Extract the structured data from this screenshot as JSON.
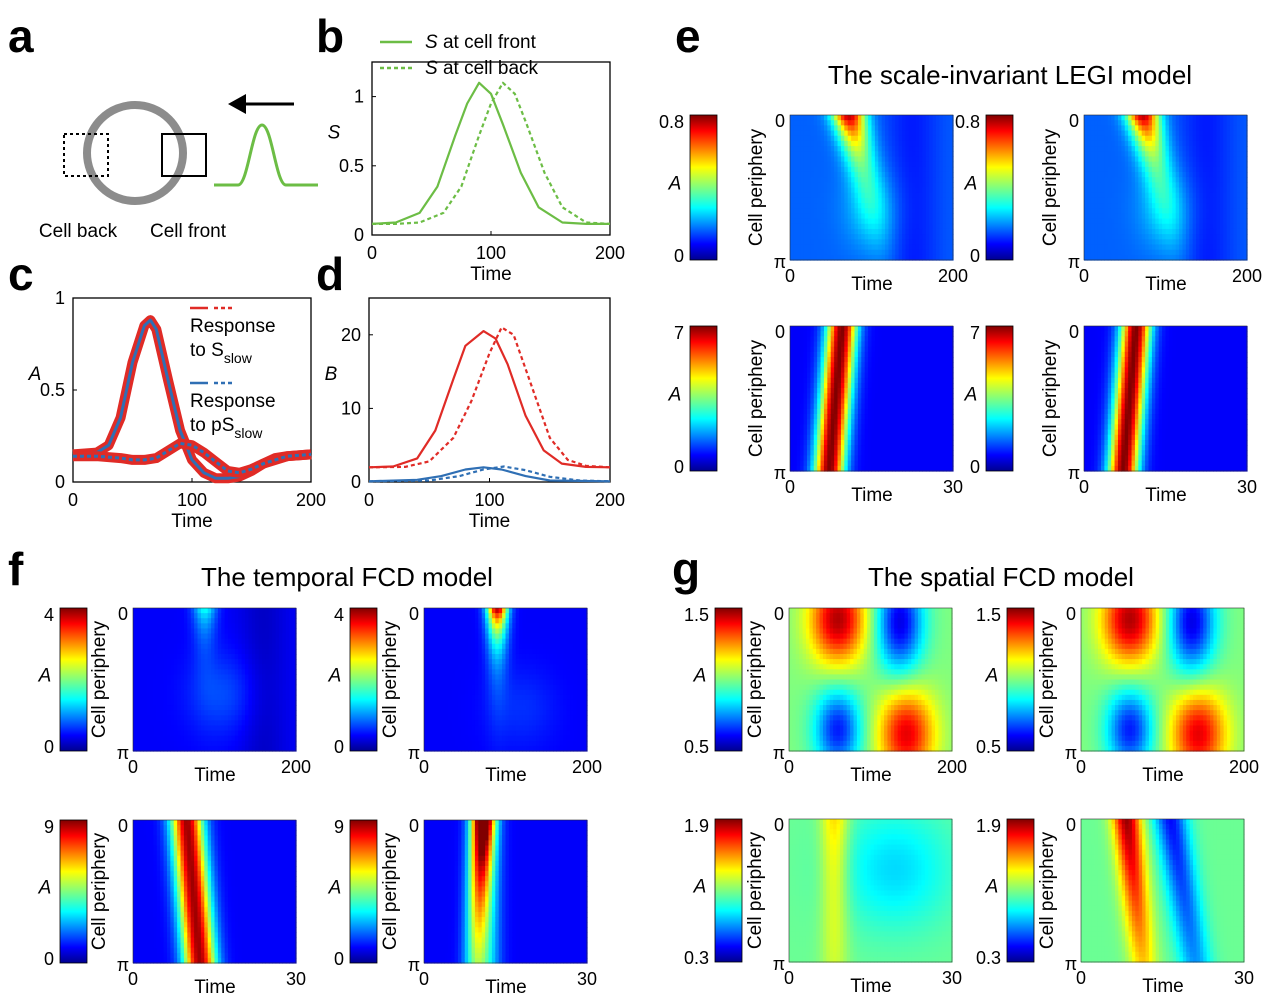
{
  "panels": {
    "a": {
      "letter": "a",
      "cell_back": "Cell back",
      "cell_front": "Cell front",
      "colors": {
        "cell": "#8c8c8c",
        "signal": "#6cbd45"
      }
    },
    "b": {
      "letter": "b"
    },
    "c": {
      "letter": "c"
    },
    "d": {
      "letter": "d"
    },
    "e": {
      "letter": "e",
      "title": "The scale-invariant LEGI model"
    },
    "f": {
      "letter": "f",
      "title": "The temporal FCD model"
    },
    "g": {
      "letter": "g",
      "title": "The spatial FCD model"
    }
  },
  "chart_data": [
    {
      "id": "b",
      "type": "line",
      "xlabel": "Time",
      "ylabel": "S",
      "xlim": [
        0,
        200
      ],
      "ylim": [
        0,
        1.25
      ],
      "xticks": [
        "0",
        "100",
        "200"
      ],
      "yticks": [
        "0",
        "0.5",
        "1"
      ],
      "legend_position": "top-left",
      "series": [
        {
          "name_var": "S",
          "name_rest": " at cell front",
          "style": "solid",
          "color": "#6cbd45",
          "x": [
            0,
            20,
            40,
            55,
            70,
            80,
            90,
            100,
            110,
            125,
            140,
            160,
            180,
            200
          ],
          "y": [
            0.08,
            0.09,
            0.16,
            0.35,
            0.72,
            0.95,
            1.1,
            1.02,
            0.8,
            0.45,
            0.2,
            0.09,
            0.08,
            0.08
          ]
        },
        {
          "name_var": "S",
          "name_rest": " at cell back",
          "style": "dotted",
          "color": "#6cbd45",
          "x": [
            0,
            20,
            40,
            60,
            75,
            90,
            100,
            110,
            120,
            130,
            145,
            160,
            180,
            200
          ],
          "y": [
            0.08,
            0.08,
            0.09,
            0.16,
            0.35,
            0.72,
            0.95,
            1.1,
            1.02,
            0.8,
            0.45,
            0.2,
            0.09,
            0.08
          ]
        }
      ]
    },
    {
      "id": "c",
      "type": "line",
      "xlabel": "Time",
      "ylabel": "A",
      "xlim": [
        0,
        200
      ],
      "ylim": [
        0,
        1
      ],
      "xticks": [
        "0",
        "100",
        "200"
      ],
      "yticks": [
        "0",
        "0.5",
        "1"
      ],
      "legend_position": "top-right",
      "legend": [
        {
          "line1": "Response",
          "line2": "to S",
          "sub": "slow",
          "color": "#e02b26"
        },
        {
          "line1": "Response",
          "line2": "to pS",
          "sub": "slow",
          "color": "#2f6fb4"
        }
      ],
      "series": [
        {
          "name": "Response to S_slow (cell front)",
          "style": "solid",
          "color": "#e02b26",
          "x": [
            0,
            20,
            30,
            40,
            50,
            60,
            65,
            70,
            80,
            90,
            100,
            110,
            120,
            130,
            140,
            150,
            160,
            170,
            180,
            200
          ],
          "y": [
            0.15,
            0.16,
            0.2,
            0.35,
            0.65,
            0.85,
            0.88,
            0.83,
            0.55,
            0.28,
            0.12,
            0.05,
            0.02,
            0.02,
            0.03,
            0.06,
            0.1,
            0.13,
            0.14,
            0.15
          ]
        },
        {
          "name": "Response to S_slow (cell back)",
          "style": "dotted",
          "color": "#e02b26",
          "x": [
            0,
            20,
            40,
            50,
            60,
            70,
            80,
            90,
            100,
            110,
            120,
            130,
            140,
            150,
            160,
            180,
            200
          ],
          "y": [
            0.14,
            0.14,
            0.13,
            0.12,
            0.12,
            0.13,
            0.17,
            0.21,
            0.2,
            0.16,
            0.11,
            0.06,
            0.05,
            0.07,
            0.1,
            0.14,
            0.15
          ]
        }
      ]
    },
    {
      "id": "d",
      "type": "line",
      "xlabel": "Time",
      "ylabel": "B",
      "xlim": [
        0,
        200
      ],
      "ylim": [
        0,
        25
      ],
      "xticks": [
        "0",
        "100",
        "200"
      ],
      "yticks": [
        "0",
        "10",
        "20"
      ],
      "series": [
        {
          "name": "red front",
          "style": "solid",
          "color": "#e02b26",
          "x": [
            0,
            20,
            40,
            55,
            70,
            80,
            95,
            105,
            115,
            130,
            145,
            160,
            180,
            200
          ],
          "y": [
            2,
            2.1,
            3.2,
            7,
            14,
            18.5,
            20.5,
            19.5,
            16,
            9,
            4.3,
            2.5,
            2.05,
            2
          ]
        },
        {
          "name": "red back",
          "style": "dotted",
          "color": "#e02b26",
          "x": [
            0,
            30,
            50,
            70,
            85,
            100,
            110,
            120,
            135,
            150,
            165,
            180,
            200
          ],
          "y": [
            2,
            2.05,
            2.8,
            6,
            11,
            17.5,
            21,
            20,
            13,
            6,
            3,
            2.2,
            2
          ]
        },
        {
          "name": "blue front",
          "style": "solid",
          "color": "#2f6fb4",
          "x": [
            0,
            40,
            60,
            80,
            95,
            110,
            130,
            150,
            200
          ],
          "y": [
            0.1,
            0.3,
            0.8,
            1.7,
            2,
            1.7,
            0.8,
            0.2,
            0.1
          ]
        },
        {
          "name": "blue back",
          "style": "dotted",
          "color": "#2f6fb4",
          "x": [
            0,
            50,
            75,
            95,
            112,
            130,
            150,
            175,
            200
          ],
          "y": [
            0.1,
            0.2,
            0.8,
            1.7,
            2.1,
            1.6,
            0.7,
            0.2,
            0.1
          ]
        }
      ]
    },
    {
      "id": "heatmaps",
      "type": "heatmap",
      "ylabel": "Cell periphery",
      "xlabel": "Time",
      "colorbar_label": "A",
      "y_top": "0",
      "y_bottom": "π",
      "maps": [
        {
          "panel": "e",
          "pos": "top-left",
          "clim": [
            "0.8",
            "0"
          ],
          "xticks": [
            "0",
            "200"
          ],
          "pattern": "legi-slow"
        },
        {
          "panel": "e",
          "pos": "top-right",
          "clim": [
            "0.8",
            "0"
          ],
          "xticks": [
            "0",
            "200"
          ],
          "pattern": "legi-slow"
        },
        {
          "panel": "e",
          "pos": "bottom-left",
          "clim": [
            "7",
            "0"
          ],
          "xticks": [
            "0",
            "30"
          ],
          "pattern": "legi-fast"
        },
        {
          "panel": "e",
          "pos": "bottom-right",
          "clim": [
            "7",
            "0"
          ],
          "xticks": [
            "0",
            "30"
          ],
          "pattern": "legi-fast"
        },
        {
          "panel": "f",
          "pos": "top-left",
          "clim": [
            "4",
            "0"
          ],
          "xticks": [
            "0",
            "200"
          ],
          "pattern": "tfcd-slow-weak"
        },
        {
          "panel": "f",
          "pos": "top-right",
          "clim": [
            "4",
            "0"
          ],
          "xticks": [
            "0",
            "200"
          ],
          "pattern": "tfcd-slow-strong"
        },
        {
          "panel": "f",
          "pos": "bottom-left",
          "clim": [
            "9",
            "0"
          ],
          "xticks": [
            "0",
            "30"
          ],
          "pattern": "tfcd-fast-1"
        },
        {
          "panel": "f",
          "pos": "bottom-right",
          "clim": [
            "9",
            "0"
          ],
          "xticks": [
            "0",
            "30"
          ],
          "pattern": "tfcd-fast-2"
        },
        {
          "panel": "g",
          "pos": "top-left",
          "clim": [
            "1.5",
            "0.5"
          ],
          "xticks": [
            "0",
            "200"
          ],
          "pattern": "sfcd-slow"
        },
        {
          "panel": "g",
          "pos": "top-right",
          "clim": [
            "1.5",
            "0.5"
          ],
          "xticks": [
            "0",
            "200"
          ],
          "pattern": "sfcd-slow"
        },
        {
          "panel": "g",
          "pos": "bottom-left",
          "clim": [
            "1.9",
            "0.3"
          ],
          "xticks": [
            "0",
            "30"
          ],
          "pattern": "sfcd-fast-1"
        },
        {
          "panel": "g",
          "pos": "bottom-right",
          "clim": [
            "1.9",
            "0.3"
          ],
          "xticks": [
            "0",
            "30"
          ],
          "pattern": "sfcd-fast-2"
        }
      ]
    }
  ]
}
